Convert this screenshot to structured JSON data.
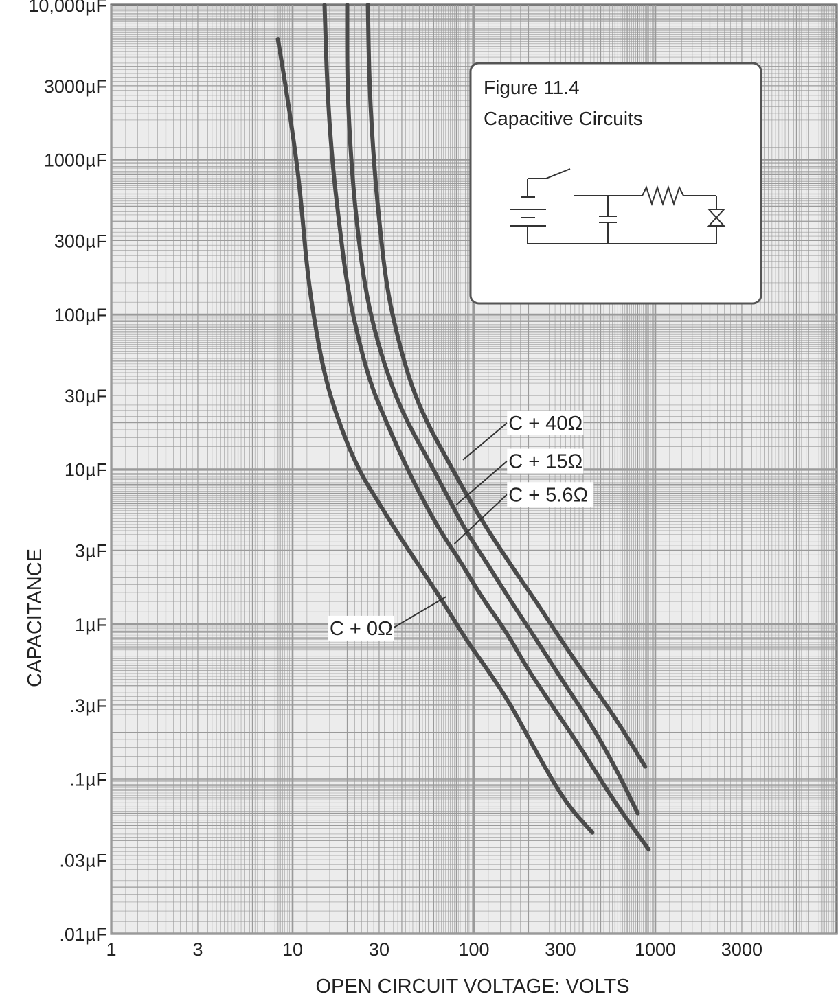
{
  "chart_data": {
    "type": "line",
    "x_scale": "log",
    "y_scale": "log",
    "xlabel": "OPEN CIRCUIT VOLTAGE:  VOLTS",
    "ylabel": "CAPACITANCE",
    "xlim": [
      1,
      10000
    ],
    "ylim": [
      0.01,
      10000
    ],
    "x_ticks": [
      {
        "value": 1,
        "label": "1"
      },
      {
        "value": 3,
        "label": "3"
      },
      {
        "value": 10,
        "label": "10"
      },
      {
        "value": 30,
        "label": "30"
      },
      {
        "value": 100,
        "label": "100"
      },
      {
        "value": 300,
        "label": "300"
      },
      {
        "value": 1000,
        "label": "1000"
      },
      {
        "value": 3000,
        "label": "3000"
      }
    ],
    "y_ticks": [
      {
        "value": 10000,
        "label": "10,000µF"
      },
      {
        "value": 3000,
        "label": "3000µF"
      },
      {
        "value": 1000,
        "label": "1000µF"
      },
      {
        "value": 300,
        "label": "300µF"
      },
      {
        "value": 100,
        "label": "100µF"
      },
      {
        "value": 30,
        "label": "30µF"
      },
      {
        "value": 10,
        "label": "10µF"
      },
      {
        "value": 3,
        "label": "3µF"
      },
      {
        "value": 1,
        "label": "1µF"
      },
      {
        "value": 0.3,
        "label": ".3µF"
      },
      {
        "value": 0.1,
        "label": ".1µF"
      },
      {
        "value": 0.03,
        "label": ".03µF"
      },
      {
        "value": 0.01,
        "label": ".01µF"
      }
    ],
    "grid": true,
    "line_color": "#4a4a4a",
    "grid_color": "#9a9a9a",
    "series": [
      {
        "name": "C + 0Ω",
        "label_at": {
          "x": 16,
          "y": 0.85
        },
        "pointer_to": {
          "x": 70,
          "y": 1.5
        },
        "x": [
          8.3,
          9.2,
          10.5,
          11.2,
          12,
          13,
          15,
          18,
          23,
          30,
          40,
          55,
          70,
          90,
          120,
          160,
          220,
          320,
          450
        ],
        "y": [
          6000,
          2900,
          1000,
          500,
          200,
          100,
          40,
          20,
          10,
          6,
          3.5,
          2,
          1.3,
          0.8,
          0.5,
          0.3,
          0.15,
          0.07,
          0.045
        ]
      },
      {
        "name": "C + 5.6Ω",
        "label_at": {
          "x": 155,
          "y": 6.2
        },
        "pointer_to": {
          "x": 78,
          "y": 3.3
        },
        "x": [
          15,
          15.5,
          16.5,
          18,
          20,
          23,
          27,
          33,
          40,
          50,
          65,
          85,
          110,
          150,
          200,
          280,
          400,
          600,
          920
        ],
        "y": [
          10000,
          3000,
          1000,
          400,
          150,
          70,
          35,
          20,
          12,
          7,
          4,
          2.5,
          1.5,
          0.9,
          0.5,
          0.28,
          0.15,
          0.07,
          0.035
        ]
      },
      {
        "name": "C + 15Ω",
        "label_at": {
          "x": 155,
          "y": 10.2
        },
        "pointer_to": {
          "x": 80,
          "y": 5.9
        },
        "x": [
          20,
          20,
          21,
          22.5,
          25,
          29,
          35,
          43,
          55,
          70,
          90,
          120,
          160,
          220,
          300,
          420,
          600,
          800
        ],
        "y": [
          10000,
          3000,
          1000,
          400,
          150,
          70,
          35,
          20,
          12,
          7,
          4,
          2.4,
          1.4,
          0.8,
          0.45,
          0.25,
          0.12,
          0.06
        ]
      },
      {
        "name": "C + 40Ω",
        "label_at": {
          "x": 155,
          "y": 18
        },
        "pointer_to": {
          "x": 87,
          "y": 11.5
        },
        "x": [
          26,
          26.5,
          28,
          30,
          33,
          38,
          45,
          55,
          70,
          90,
          120,
          160,
          220,
          300,
          420,
          600,
          880
        ],
        "y": [
          10000,
          3000,
          1000,
          400,
          150,
          70,
          35,
          20,
          12,
          7,
          4,
          2.4,
          1.4,
          0.8,
          0.45,
          0.25,
          0.12
        ]
      }
    ],
    "inset": {
      "title": "Figure  11.4",
      "subtitle": "Capacitive Circuits"
    }
  }
}
